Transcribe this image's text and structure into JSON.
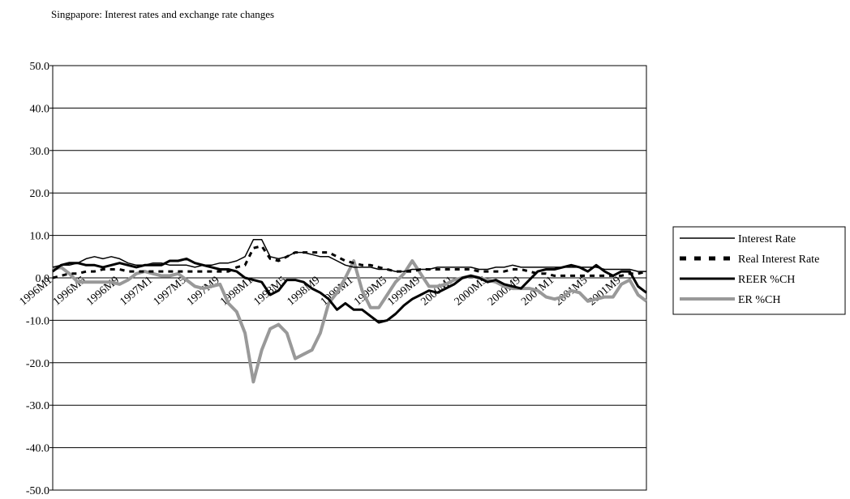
{
  "chart_data": {
    "type": "line",
    "title": "Singpapore: Interest rates and exchange rate changes",
    "categories": [
      "1996M1",
      null,
      null,
      null,
      "1996M5",
      null,
      null,
      null,
      "1996M9",
      null,
      null,
      null,
      "1997M1",
      null,
      null,
      null,
      "1997M5",
      null,
      null,
      null,
      "1997M9",
      null,
      null,
      null,
      "1998M1",
      null,
      null,
      null,
      "1998M5",
      null,
      null,
      null,
      "1998M9",
      null,
      null,
      null,
      "1999M1",
      null,
      null,
      null,
      "1999M5",
      null,
      null,
      null,
      "1999M9",
      null,
      null,
      null,
      "2000M1",
      null,
      null,
      null,
      "2000M5",
      null,
      null,
      null,
      "2000M9",
      null,
      null,
      null,
      "2001M1",
      null,
      null,
      null,
      "2001M5",
      null,
      null,
      null,
      "2001M9",
      null,
      null,
      null
    ],
    "series": [
      {
        "name": "Interest Rate",
        "color": "#000000",
        "values": [
          2.5,
          3,
          3,
          3.5,
          4.5,
          5,
          4.5,
          5,
          4.5,
          3.5,
          3,
          3,
          3.5,
          3.5,
          3,
          3,
          3,
          2.5,
          3,
          3,
          3.5,
          3.5,
          4,
          5,
          9,
          9,
          5,
          4.5,
          5,
          6,
          6,
          5.5,
          5,
          5,
          4,
          3,
          2.5,
          2.5,
          2.5,
          2,
          2,
          1.5,
          1.5,
          2,
          2,
          2,
          2.5,
          2.5,
          2.5,
          2.5,
          2.5,
          2,
          2,
          2.5,
          2.5,
          3,
          2.5,
          2.5,
          2.5,
          2.5,
          2.5,
          2.5,
          2.5,
          2.5,
          2.5,
          2.5,
          2,
          2,
          2,
          2,
          1.5,
          1.5
        ]
      },
      {
        "name": "Real Interest Rate",
        "color": "#000000",
        "dashed": true,
        "values": [
          0,
          0.5,
          1,
          1,
          1.5,
          1.5,
          2,
          2,
          2,
          1.5,
          1.5,
          1.5,
          1.5,
          1.5,
          1.5,
          1.5,
          1.5,
          1.5,
          1.5,
          1.5,
          1.5,
          1.5,
          2.5,
          3,
          7,
          7.5,
          4.5,
          4,
          5,
          6,
          6,
          6,
          6,
          6,
          5,
          4,
          3.5,
          3,
          3,
          2.5,
          2,
          1.5,
          1.5,
          1.5,
          2,
          2,
          2,
          2,
          2,
          2,
          2,
          1.5,
          1.5,
          1.5,
          1.5,
          2,
          2,
          1.5,
          1,
          1,
          0.5,
          0.5,
          0.5,
          0.5,
          0.5,
          0.5,
          0.5,
          0.5,
          0.5,
          1,
          1,
          1.5
        ]
      },
      {
        "name": "REER %CH",
        "color": "#000000",
        "values": [
          1.5,
          3,
          3.5,
          3.5,
          3,
          3,
          2.5,
          3,
          3.5,
          3,
          2.5,
          3,
          3,
          3,
          4,
          4,
          4.5,
          3.5,
          3,
          2.5,
          2,
          2,
          1.5,
          0,
          -0.5,
          -1,
          -4,
          -3,
          -0.5,
          -0.5,
          -1,
          -2.5,
          -3.5,
          -5,
          -7.5,
          -6,
          -7.5,
          -7.5,
          -9,
          -10.5,
          -10,
          -8.5,
          -6.5,
          -5,
          -4,
          -3,
          -3.5,
          -2.5,
          -1.5,
          0,
          0.5,
          0,
          -1,
          -0.5,
          -1.5,
          -2,
          -2.5,
          -0.5,
          1.5,
          2,
          2,
          2.5,
          3,
          2.5,
          1.5,
          3,
          1.5,
          0.5,
          1.5,
          1.5,
          -2,
          -3.5
        ]
      },
      {
        "name": "ER %CH",
        "color": "#999999",
        "values": [
          2,
          2.5,
          1,
          -1,
          -1,
          -1,
          -1,
          -1,
          -1.5,
          -0.5,
          1,
          1.5,
          1,
          0.5,
          0.5,
          1,
          -0.5,
          -2,
          -2.5,
          -2,
          -1.5,
          -6,
          -8,
          -13,
          -24.5,
          -17,
          -12,
          -11,
          -13,
          -19,
          -18,
          -17,
          -13,
          -6,
          -3.5,
          0,
          4,
          -3,
          -7,
          -7,
          -4,
          -1,
          1,
          4,
          1,
          -2,
          -2,
          -1.5,
          -0.5,
          0,
          0.5,
          0,
          -0.5,
          -1,
          -2,
          -2.5,
          -2.5,
          -2.5,
          -3,
          -4.5,
          -5,
          -4.5,
          -3,
          -3.5,
          -5.5,
          -5,
          -4.5,
          -4.5,
          -1.5,
          -0.5,
          -4,
          -5.5
        ]
      }
    ],
    "ylim": [
      -50,
      50
    ],
    "yticks": [
      {
        "value": -50,
        "label": "-50.0"
      },
      {
        "value": -40,
        "label": "-40.0"
      },
      {
        "value": -30,
        "label": "-30.0"
      },
      {
        "value": -20,
        "label": "-20.0"
      },
      {
        "value": -10,
        "label": "-10.0"
      },
      {
        "value": 0,
        "label": "0.0"
      },
      {
        "value": 10,
        "label": "10.0"
      },
      {
        "value": 20,
        "label": "20.0"
      },
      {
        "value": 30,
        "label": "30.0"
      },
      {
        "value": 40,
        "label": "40.0"
      },
      {
        "value": 50,
        "label": "50.0"
      }
    ],
    "grid": true,
    "legend": "right"
  }
}
